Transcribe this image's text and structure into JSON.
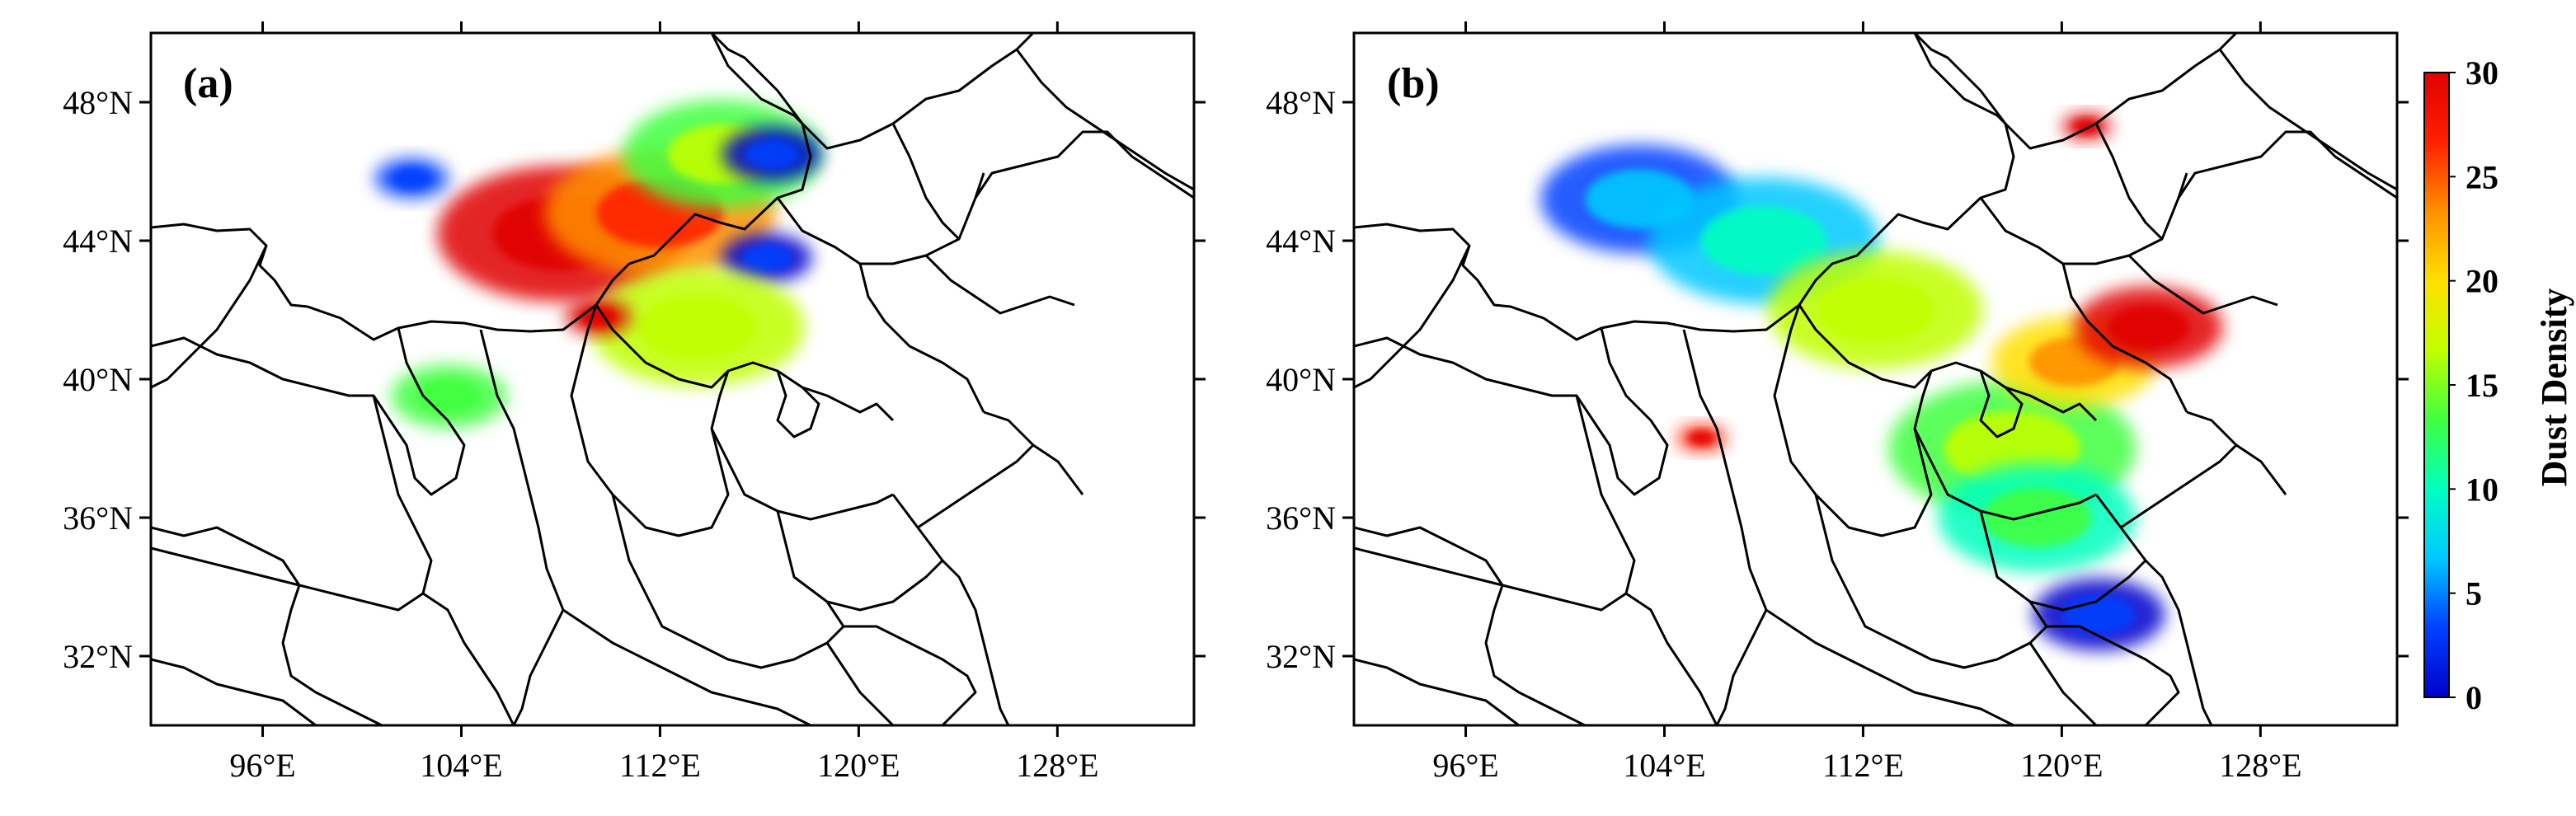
{
  "panels": [
    {
      "label": "(a)"
    },
    {
      "label": "(b)"
    }
  ],
  "axes": {
    "lon_ticks": [
      "96°E",
      "104°E",
      "112°E",
      "120°E",
      "128°E"
    ],
    "lat_ticks": [
      "48°N",
      "44°N",
      "40°N",
      "36°N",
      "32°N"
    ],
    "lon_range": [
      91.5,
      133.5
    ],
    "lat_range": [
      30.0,
      50.0
    ]
  },
  "colorbar": {
    "title": "Dust Density",
    "ticks": [
      "30",
      "25",
      "20",
      "15",
      "10",
      "5",
      "0"
    ],
    "range": [
      0,
      30
    ],
    "colors": [
      "#0000cc",
      "#0040ff",
      "#00c8ff",
      "#00ffc0",
      "#40ff40",
      "#c0ff00",
      "#ffe000",
      "#ff9000",
      "#ff2000",
      "#e00000"
    ]
  },
  "chart_data": {
    "type": "heatmap",
    "variable": "Dust Density",
    "value_range": [
      0,
      30
    ],
    "panels": [
      {
        "label": "(a)",
        "plumes": [
          {
            "lon": 108.0,
            "lat": 44.2,
            "value": 29
          },
          {
            "lon": 112.0,
            "lat": 44.8,
            "value": 22
          },
          {
            "lon": 114.5,
            "lat": 46.5,
            "value": 14
          },
          {
            "lon": 116.5,
            "lat": 46.5,
            "value": 2
          },
          {
            "lon": 116.3,
            "lat": 43.5,
            "value": 2
          },
          {
            "lon": 113.5,
            "lat": 41.5,
            "value": 15
          },
          {
            "lon": 103.5,
            "lat": 39.5,
            "value": 12
          },
          {
            "lon": 102.0,
            "lat": 45.8,
            "value": 3
          },
          {
            "lon": 109.5,
            "lat": 41.8,
            "value": 28
          }
        ]
      },
      {
        "label": "(b)",
        "plumes": [
          {
            "lon": 103.0,
            "lat": 45.2,
            "value": 4
          },
          {
            "lon": 108.0,
            "lat": 44.0,
            "value": 7
          },
          {
            "lon": 112.5,
            "lat": 42.0,
            "value": 15
          },
          {
            "lon": 118.0,
            "lat": 38.0,
            "value": 13
          },
          {
            "lon": 120.5,
            "lat": 40.5,
            "value": 20
          },
          {
            "lon": 123.5,
            "lat": 41.5,
            "value": 29
          },
          {
            "lon": 119.0,
            "lat": 36.0,
            "value": 10
          },
          {
            "lon": 121.5,
            "lat": 33.2,
            "value": 1
          },
          {
            "lon": 121.0,
            "lat": 47.3,
            "value": 27
          },
          {
            "lon": 105.5,
            "lat": 38.3,
            "value": 26
          }
        ]
      }
    ]
  }
}
